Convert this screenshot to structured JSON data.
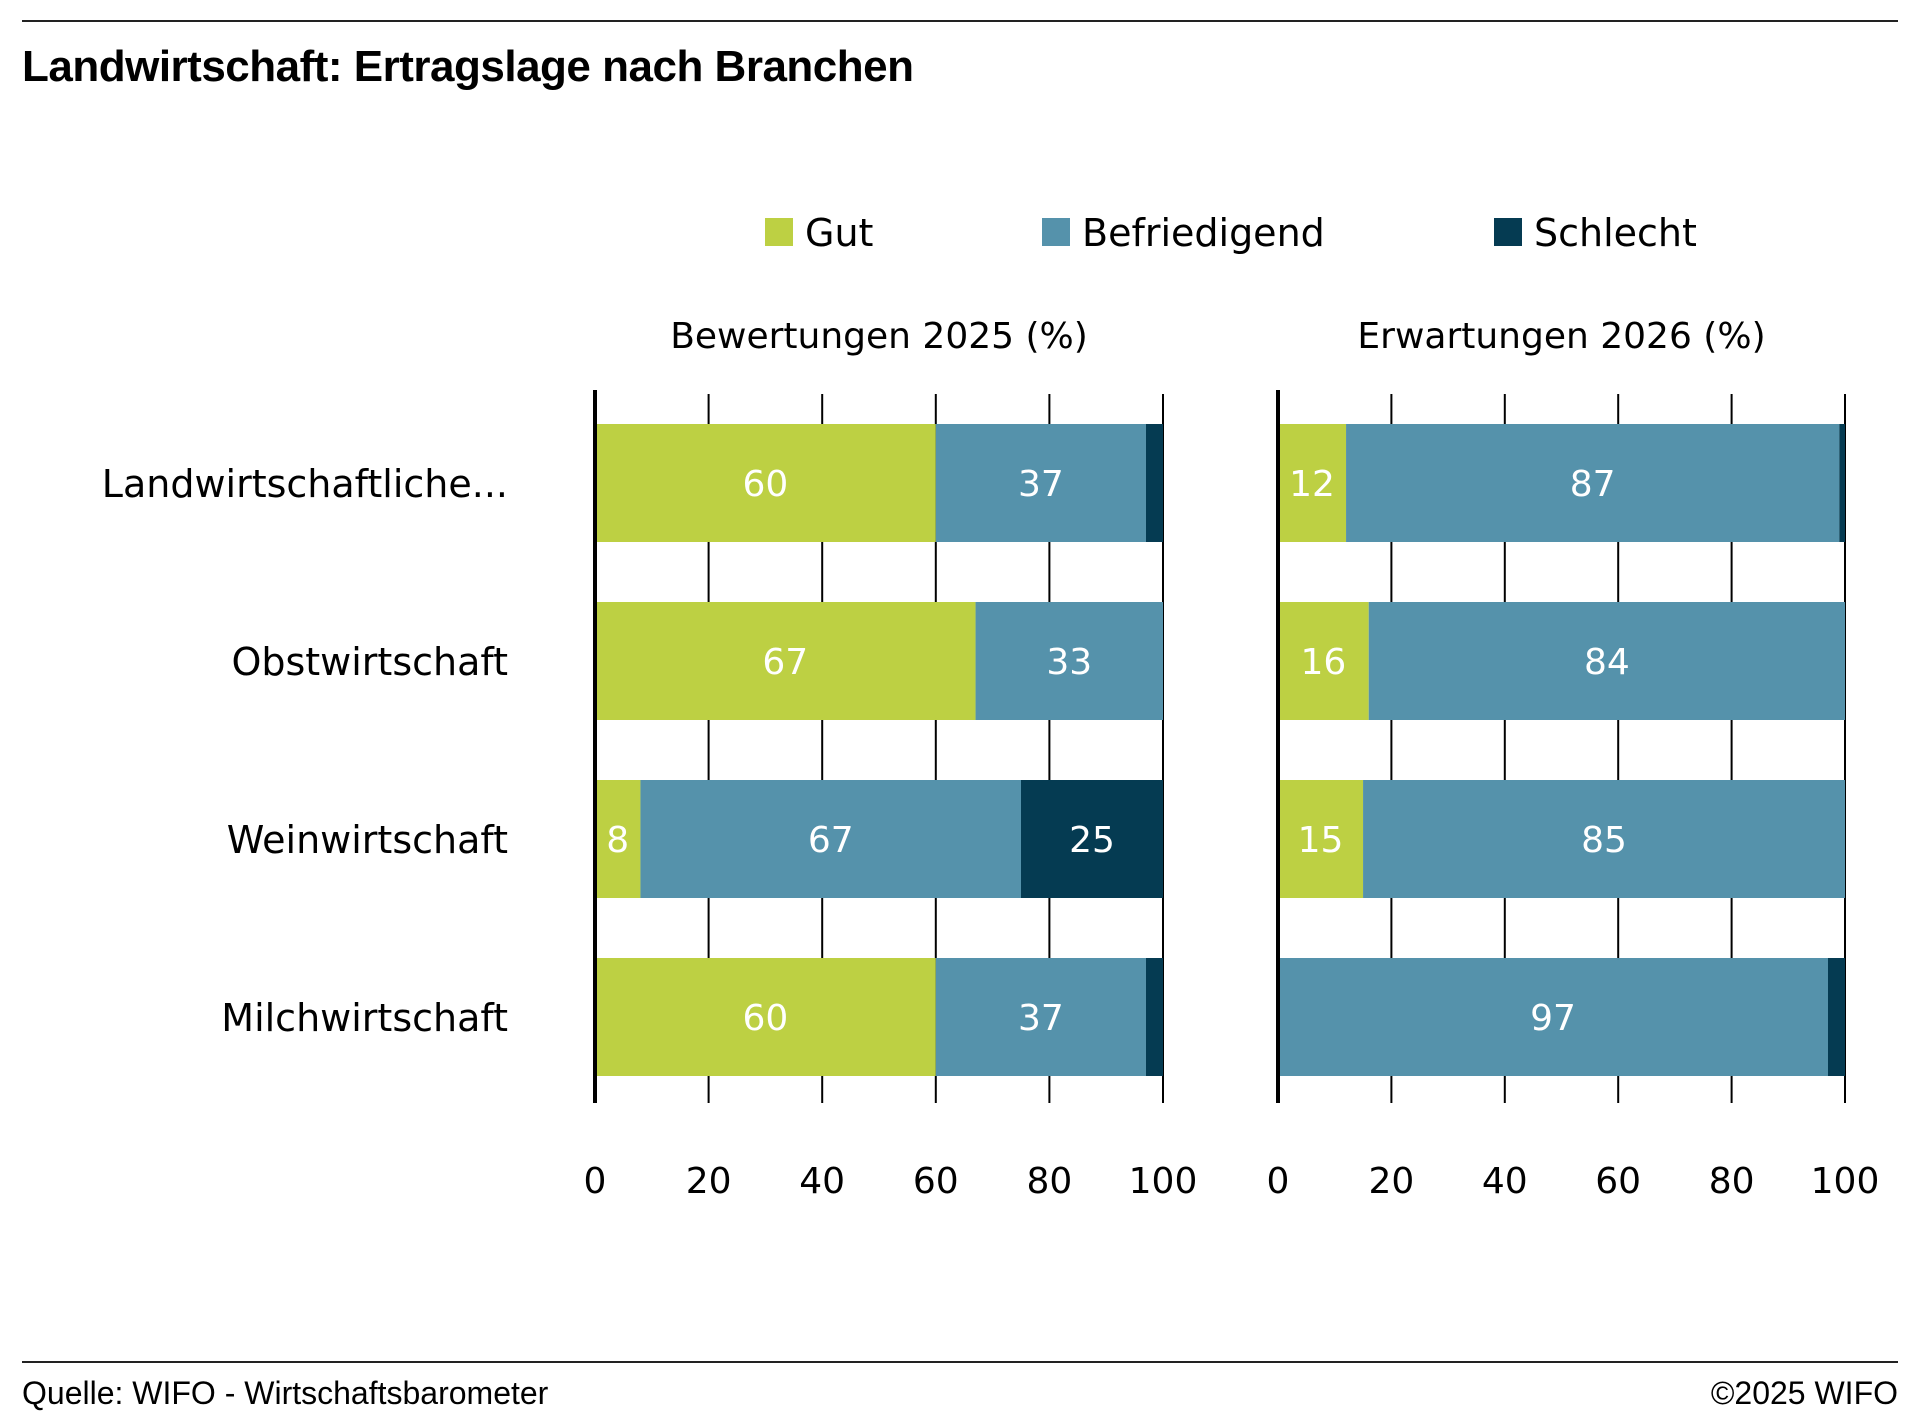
{
  "title": "Landwirtschaft: Ertragslage nach Branchen",
  "footer": {
    "source": "Quelle: WIFO - Wirtschaftsbarometer",
    "copyright": "©2025 WIFO"
  },
  "colors": {
    "gut": "#bdd043",
    "befriedigend": "#5592ab",
    "schlecht": "#053b52"
  },
  "chart_data": [
    {
      "type": "bar",
      "orientation": "horizontal",
      "stacked": true,
      "title": "Bewertungen 2025 (%)",
      "categories": [
        "Landwirtschaftliche...",
        "Obstwirtschaft",
        "Weinwirtschaft",
        "Milchwirtschaft"
      ],
      "series": [
        {
          "name": "Gut",
          "values": [
            60,
            67,
            8,
            60
          ],
          "labels": [
            "60",
            "67",
            "8",
            "60"
          ]
        },
        {
          "name": "Befriedigend",
          "values": [
            37,
            33,
            67,
            37
          ],
          "labels": [
            "37",
            "33",
            "67",
            "37"
          ]
        },
        {
          "name": "Schlecht",
          "values": [
            3,
            0,
            25,
            3
          ],
          "labels": [
            "",
            "",
            "25",
            ""
          ]
        }
      ],
      "xlim": [
        0,
        100
      ],
      "xticks": [
        "0",
        "20",
        "40",
        "60",
        "80",
        "100"
      ],
      "grid": true,
      "legend": [
        "Gut",
        "Befriedigend",
        "Schlecht"
      ],
      "legend_position": "top"
    },
    {
      "type": "bar",
      "orientation": "horizontal",
      "stacked": true,
      "title": "Erwartungen 2026 (%)",
      "categories": [
        "Landwirtschaftliche...",
        "Obstwirtschaft",
        "Weinwirtschaft",
        "Milchwirtschaft"
      ],
      "series": [
        {
          "name": "Gut",
          "values": [
            12,
            16,
            15,
            0
          ],
          "labels": [
            "12",
            "16",
            "15",
            ""
          ]
        },
        {
          "name": "Befriedigend",
          "values": [
            87,
            84,
            85,
            97
          ],
          "labels": [
            "87",
            "84",
            "85",
            "97"
          ]
        },
        {
          "name": "Schlecht",
          "values": [
            1,
            0,
            0,
            3
          ],
          "labels": [
            "",
            "",
            "",
            ""
          ]
        }
      ],
      "xlim": [
        0,
        100
      ],
      "xticks": [
        "0",
        "20",
        "40",
        "60",
        "80",
        "100"
      ],
      "grid": true
    }
  ]
}
